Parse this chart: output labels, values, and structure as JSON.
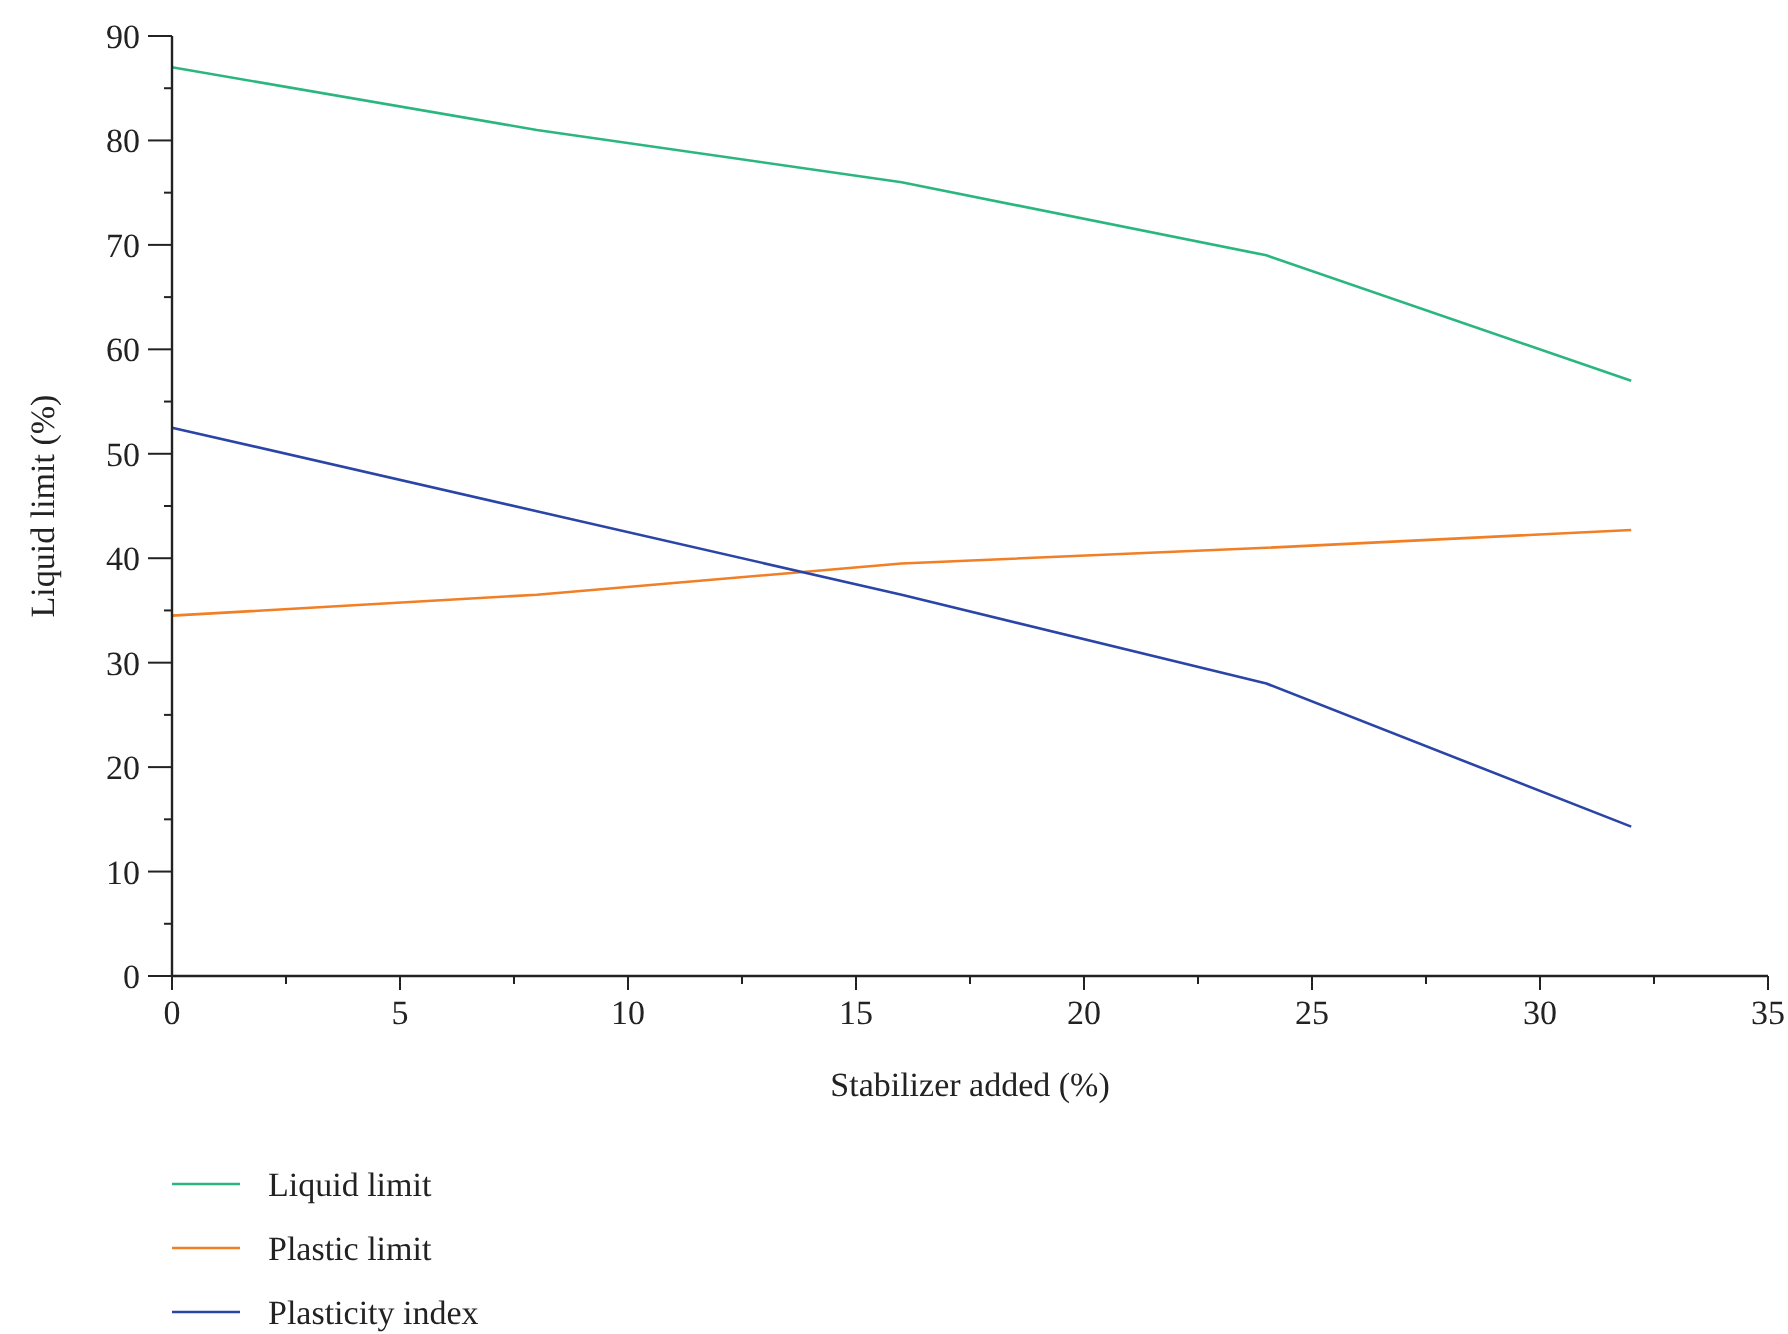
{
  "chart_data": {
    "type": "line",
    "xlabel": "Stabilizer added (%)",
    "ylabel": "Liquid limit (%)",
    "x": [
      0,
      8,
      16,
      24,
      32
    ],
    "series": [
      {
        "name": "Liquid limit",
        "color": "#2bb67f",
        "values": [
          87,
          81,
          76,
          69,
          57
        ]
      },
      {
        "name": "Plastic limit",
        "color": "#f07f26",
        "values": [
          34.5,
          36.5,
          39.5,
          41,
          42.7
        ]
      },
      {
        "name": "Plasticity index",
        "color": "#2b45a6",
        "values": [
          52.5,
          44.5,
          36.5,
          28,
          14.3
        ]
      }
    ],
    "xlim": [
      0,
      35
    ],
    "ylim": [
      0,
      90
    ],
    "xticks": [
      0,
      {
        "value": 2.5,
        "label": null
      },
      5,
      {
        "value": 7.5,
        "label": null
      },
      10,
      {
        "value": 12.5,
        "label": null
      },
      15,
      {
        "value": 17.5,
        "label": null
      },
      20,
      {
        "value": 22.5,
        "label": null
      },
      25,
      {
        "value": 27.5,
        "label": null
      },
      30,
      {
        "value": 32.5,
        "label": null
      },
      35
    ],
    "yticks": [
      0,
      {
        "value": 5,
        "label": null
      },
      10,
      {
        "value": 15,
        "label": null
      },
      20,
      {
        "value": 25,
        "label": null
      },
      30,
      {
        "value": 35,
        "label": null
      },
      40,
      {
        "value": 45,
        "label": null
      },
      50,
      {
        "value": 55,
        "label": null
      },
      60,
      {
        "value": 65,
        "label": null
      },
      70,
      {
        "value": 75,
        "label": null
      },
      80,
      {
        "value": 85,
        "label": null
      },
      90
    ],
    "grid": false,
    "legend": "bottom left",
    "marker": "none",
    "line_style": "solid"
  }
}
